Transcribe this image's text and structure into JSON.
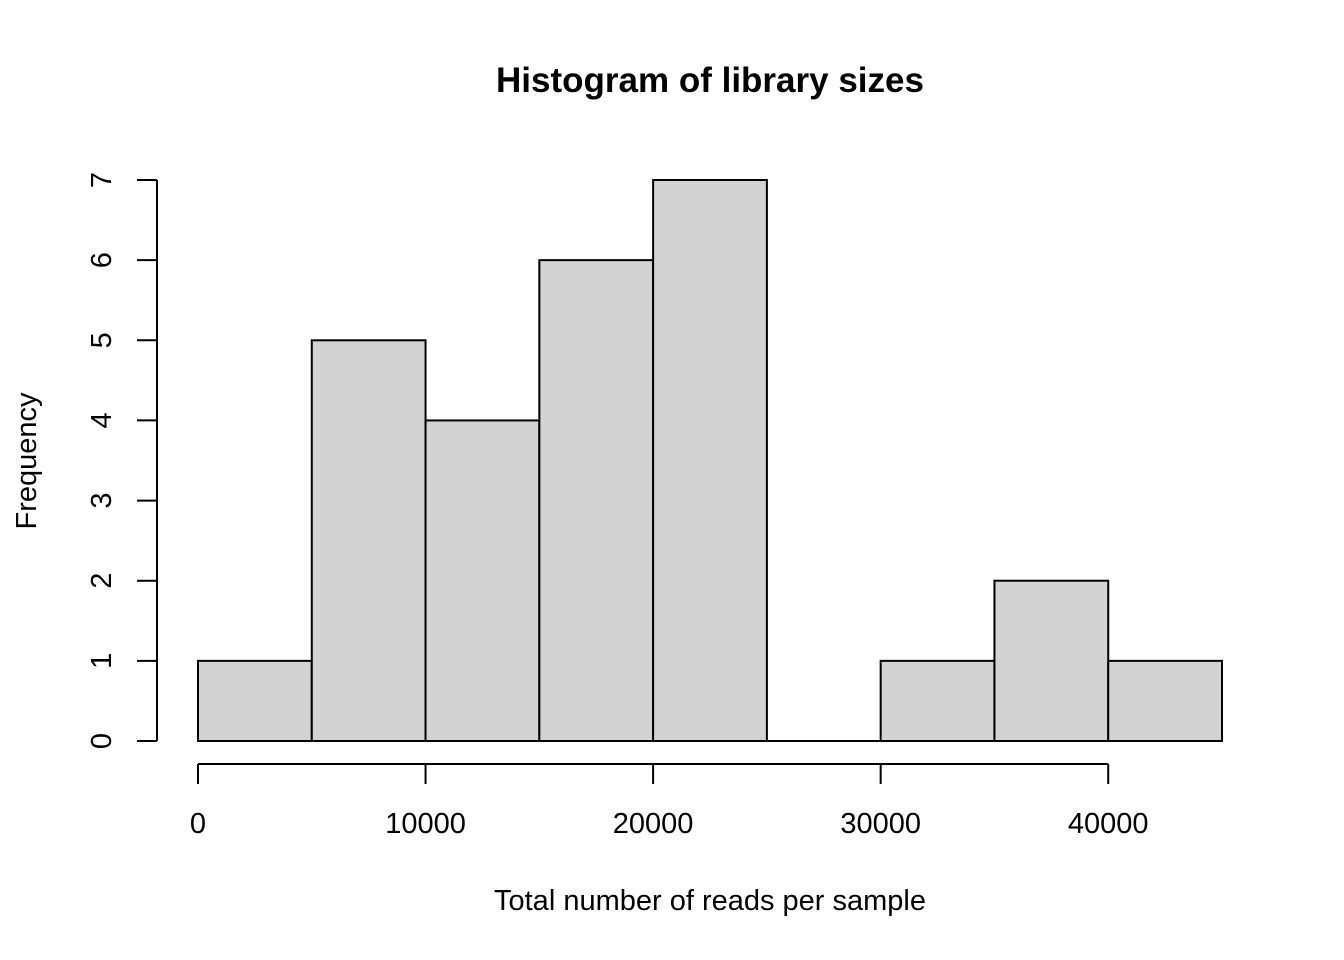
{
  "chart_data": {
    "type": "bar",
    "title": "Histogram of library sizes",
    "xlabel": "Total number of reads per sample",
    "ylabel": "Frequency",
    "bins": [
      {
        "from": 0,
        "to": 5000,
        "count": 1
      },
      {
        "from": 5000,
        "to": 10000,
        "count": 5
      },
      {
        "from": 10000,
        "to": 15000,
        "count": 4
      },
      {
        "from": 15000,
        "to": 20000,
        "count": 6
      },
      {
        "from": 20000,
        "to": 25000,
        "count": 7
      },
      {
        "from": 25000,
        "to": 30000,
        "count": 0
      },
      {
        "from": 30000,
        "to": 35000,
        "count": 1
      },
      {
        "from": 35000,
        "to": 40000,
        "count": 2
      },
      {
        "from": 40000,
        "to": 45000,
        "count": 1
      }
    ],
    "xlim": [
      0,
      45000
    ],
    "ylim": [
      0,
      7
    ],
    "x_ticks": [
      0,
      10000,
      20000,
      30000,
      40000
    ],
    "y_ticks": [
      0,
      1,
      2,
      3,
      4,
      5,
      6,
      7
    ],
    "bar_color": "#d3d3d3",
    "grid": false,
    "legend": false
  }
}
